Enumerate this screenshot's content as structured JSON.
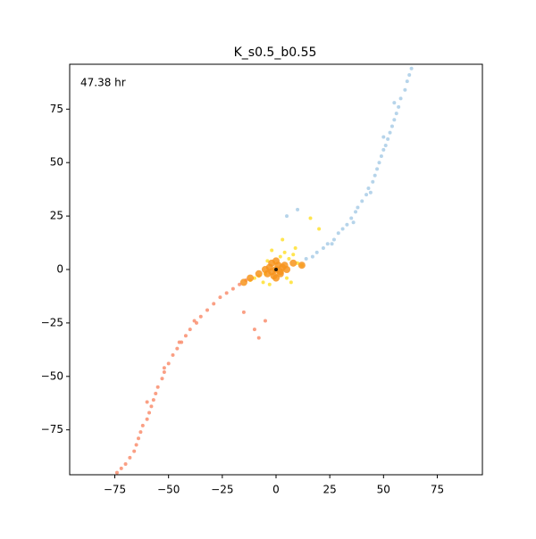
{
  "chart_data": {
    "type": "scatter",
    "title": "K_s0.5_b0.55",
    "annotation": "47.38 hr",
    "xlim": [
      -96,
      96
    ],
    "ylim": [
      -96,
      96
    ],
    "xticks": [
      {
        "value": -75,
        "label": "−75"
      },
      {
        "value": -50,
        "label": "−50"
      },
      {
        "value": -25,
        "label": "−25"
      },
      0,
      25,
      50,
      75
    ],
    "yticks": [
      {
        "value": -75,
        "label": "−75"
      },
      {
        "value": -50,
        "label": "−50"
      },
      {
        "value": -25,
        "label": "−25"
      },
      0,
      25,
      50,
      75
    ],
    "series": [
      {
        "color": "#a9cde6",
        "x": [
          14,
          17,
          19,
          22,
          24,
          27,
          29,
          31,
          33,
          35,
          37,
          38,
          40,
          42,
          43,
          45,
          46,
          47,
          48,
          49,
          50,
          51,
          52,
          53,
          54,
          55,
          56,
          57,
          58,
          60,
          61,
          62,
          63,
          55,
          50,
          44,
          36,
          26,
          10,
          5
        ],
        "y": [
          5,
          6,
          8,
          10,
          12,
          14,
          17,
          19,
          21,
          24,
          27,
          29,
          32,
          35,
          38,
          41,
          44,
          47,
          50,
          53,
          56,
          58,
          61,
          64,
          67,
          70,
          73,
          76,
          80,
          84,
          88,
          91,
          94,
          78,
          62,
          36,
          22,
          12,
          28,
          25
        ]
      },
      {
        "color": "#f98e6f",
        "x": [
          -14,
          -17,
          -20,
          -23,
          -26,
          -29,
          -32,
          -35,
          -37,
          -40,
          -42,
          -44,
          -46,
          -48,
          -50,
          -52,
          -53,
          -55,
          -56,
          -57,
          -58,
          -59,
          -60,
          -62,
          -63,
          -64,
          -65,
          -66,
          -68,
          -70,
          -72,
          -74,
          -60,
          -52,
          -45,
          -38,
          -10,
          -8,
          -15,
          -5
        ],
        "y": [
          -5,
          -7,
          -9,
          -11,
          -13,
          -16,
          -19,
          -22,
          -25,
          -28,
          -31,
          -34,
          -37,
          -40,
          -44,
          -48,
          -51,
          -55,
          -58,
          -61,
          -64,
          -67,
          -70,
          -73,
          -76,
          -79,
          -82,
          -85,
          -88,
          -91,
          -93,
          -95,
          -62,
          -46,
          -34,
          -24,
          -28,
          -32,
          -20,
          -24
        ]
      },
      {
        "color": "#ffe030",
        "x": [
          -12,
          -10,
          -8,
          -6,
          -4,
          -3,
          2,
          4,
          6,
          8,
          9,
          10,
          12,
          -2,
          5,
          3,
          -5,
          7,
          16,
          20
        ],
        "y": [
          -5,
          -4,
          -3,
          -6,
          4,
          -7,
          6,
          8,
          5,
          7,
          10,
          3,
          2,
          9,
          -4,
          14,
          -2,
          -6,
          24,
          19
        ]
      },
      {
        "color": "#f7941d",
        "x": [
          -4,
          -3,
          -2,
          -1,
          0,
          1,
          2,
          3,
          4,
          -2,
          2,
          0,
          0,
          -5,
          5,
          -8,
          8,
          -12,
          12,
          -15
        ],
        "y": [
          -2,
          1,
          3,
          -3,
          0,
          2,
          -1,
          1,
          2,
          -1,
          -2,
          4,
          -4,
          0,
          0,
          -2,
          3,
          -4,
          2,
          -6
        ]
      },
      {
        "color": "#000000",
        "x": [
          0
        ],
        "y": [
          0
        ]
      }
    ]
  }
}
